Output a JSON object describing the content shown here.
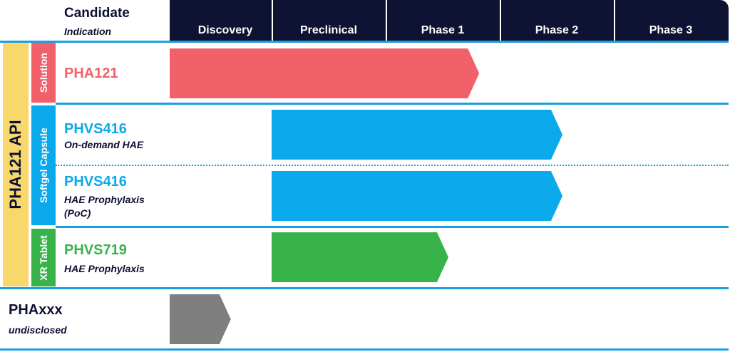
{
  "header": {
    "candidate_label": "Candidate",
    "indication_label": "Indication",
    "phases": [
      "Discovery",
      "Preclinical",
      "Phase 1",
      "Phase 2",
      "Phase 3"
    ]
  },
  "api_group": {
    "label": "PHA121 API",
    "color": "#f8d86a"
  },
  "formulations": [
    {
      "label": "Solution",
      "color": "#f2606a"
    },
    {
      "label": "Softgel Capsule",
      "color": "#0aa9ec"
    },
    {
      "label": "XR Tablet",
      "color": "#38b34a"
    }
  ],
  "rows": [
    {
      "candidate": "PHA121",
      "indication": "",
      "color": "#f2606a",
      "progress_phase_index": 2.82
    },
    {
      "candidate": "PHVS416",
      "indication": "On-demand HAE",
      "color": "#0aa9ec",
      "progress_phase_index": 3.55
    },
    {
      "candidate": "PHVS416",
      "indication_lines": [
        "HAE Prophylaxis",
        "(PoC)"
      ],
      "color": "#0aa9ec",
      "progress_phase_index": 3.55
    },
    {
      "candidate": "PHVS719",
      "indication": "HAE Prophylaxis",
      "color": "#38b34a",
      "progress_phase_index": 2.55
    },
    {
      "candidate": "PHAxxx",
      "indication": "undisclosed",
      "color": "#7f7f7f",
      "progress_phase_index": 0.6
    }
  ],
  "colors": {
    "header_bg": "#0e1233",
    "divider": "#1a9fe0",
    "text_dark": "#0d1033"
  }
}
